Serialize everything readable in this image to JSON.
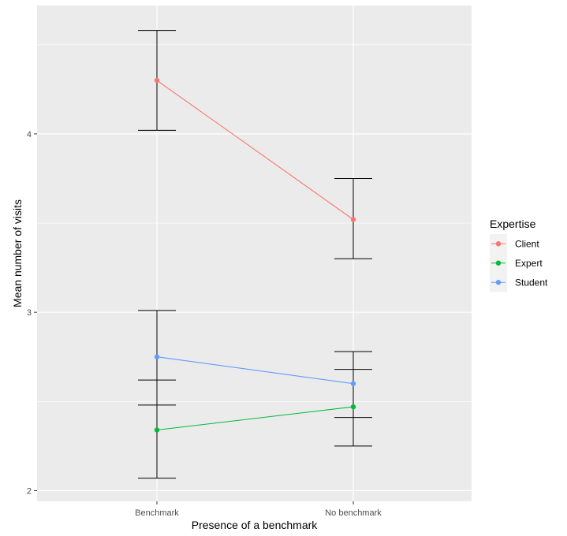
{
  "chart_data": {
    "type": "line",
    "title": "",
    "xlabel": "Presence of a benchmark",
    "ylabel": "Mean number of visits",
    "categories": [
      "Benchmark",
      "No benchmark"
    ],
    "ylim": [
      1.94,
      4.72
    ],
    "yticks": [
      2,
      3,
      4
    ],
    "grid": true,
    "legend": {
      "title": "Expertise",
      "position": "right"
    },
    "series": [
      {
        "name": "Client",
        "color": "#F8766D",
        "values": [
          4.3,
          3.52
        ],
        "err_low": [
          4.02,
          3.3
        ],
        "err_high": [
          4.58,
          3.75
        ]
      },
      {
        "name": "Expert",
        "color": "#00BA38",
        "values": [
          2.34,
          2.47
        ],
        "err_low": [
          2.07,
          2.25
        ],
        "err_high": [
          2.62,
          2.68
        ]
      },
      {
        "name": "Student",
        "color": "#619CFF",
        "values": [
          2.75,
          2.6
        ],
        "err_low": [
          2.48,
          2.41
        ],
        "err_high": [
          3.01,
          2.78
        ]
      }
    ]
  }
}
